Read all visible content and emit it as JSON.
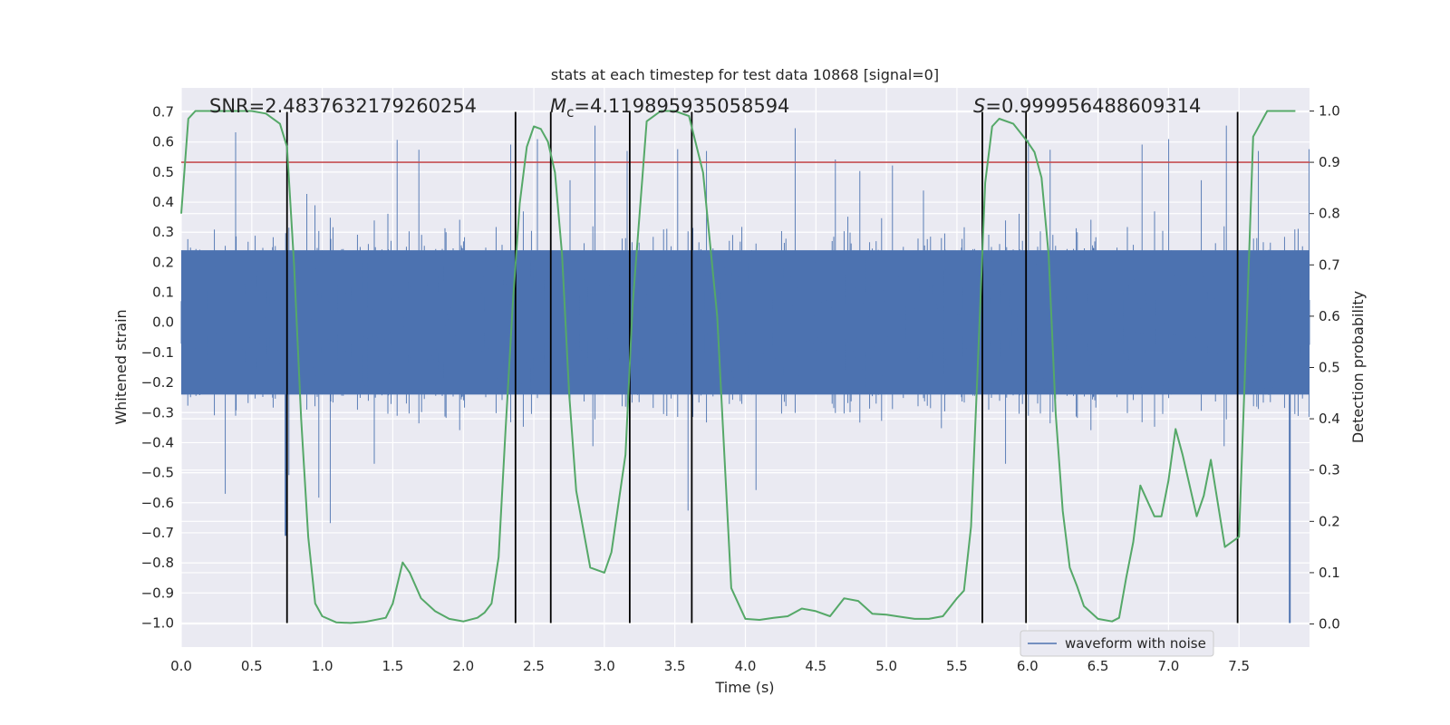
{
  "chart_data": {
    "type": "line",
    "title": "stats at each timestep for test data 10868 [signal=0]",
    "xlabel": "Time (s)",
    "ylabel": "Whitened strain",
    "y2label": "Detection probability",
    "xlim": [
      0.0,
      8.0
    ],
    "ylim": [
      -1.08,
      0.78
    ],
    "y2lim": [
      -0.045,
      1.045
    ],
    "xticks": [
      "0.0",
      "0.5",
      "1.0",
      "1.5",
      "2.0",
      "2.5",
      "3.0",
      "3.5",
      "4.0",
      "4.5",
      "5.0",
      "5.5",
      "6.0",
      "6.5",
      "7.0",
      "7.5"
    ],
    "yticks": [
      "0.7",
      "0.6",
      "0.5",
      "0.4",
      "0.3",
      "0.2",
      "0.1",
      "0.0",
      "−0.1",
      "−0.2",
      "−0.3",
      "−0.4",
      "−0.5",
      "−0.6",
      "−0.7",
      "−0.8",
      "−0.9",
      "−1.0"
    ],
    "y2ticks": [
      "1.0",
      "0.9",
      "0.8",
      "0.7",
      "0.6",
      "0.5",
      "0.4",
      "0.3",
      "0.2",
      "0.1",
      "0.0"
    ],
    "grid": true,
    "legend_position": "lower-right",
    "annotations": [
      {
        "id": "snr",
        "text": "SNR=2.4837632179260254"
      },
      {
        "id": "mc",
        "text": "=4.119895935058594",
        "prefix": "M",
        "sub": "c"
      },
      {
        "id": "s",
        "text": "=0.999956488609314",
        "prefix": "S"
      }
    ],
    "series": [
      {
        "name": "waveform with noise",
        "color": "#4c72b0",
        "axis": "left",
        "kind": "noise",
        "amplitude_typical": 0.3,
        "amplitude_peak": 0.7
      },
      {
        "color": "#55a868",
        "axis": "right",
        "x": [
          0.0,
          0.05,
          0.1,
          0.2,
          0.3,
          0.4,
          0.5,
          0.6,
          0.7,
          0.75,
          0.8,
          0.85,
          0.9,
          0.95,
          1.0,
          1.1,
          1.2,
          1.3,
          1.45,
          1.5,
          1.57,
          1.62,
          1.7,
          1.8,
          1.9,
          2.0,
          2.1,
          2.15,
          2.2,
          2.25,
          2.3,
          2.35,
          2.4,
          2.45,
          2.5,
          2.55,
          2.6,
          2.65,
          2.7,
          2.75,
          2.8,
          2.9,
          3.0,
          3.05,
          3.15,
          3.2,
          3.3,
          3.4,
          3.5,
          3.6,
          3.7,
          3.8,
          3.9,
          4.0,
          4.1,
          4.2,
          4.3,
          4.4,
          4.5,
          4.6,
          4.7,
          4.8,
          4.9,
          5.0,
          5.1,
          5.2,
          5.3,
          5.4,
          5.5,
          5.55,
          5.6,
          5.65,
          5.7,
          5.75,
          5.8,
          5.9,
          6.0,
          6.05,
          6.1,
          6.15,
          6.2,
          6.25,
          6.3,
          6.35,
          6.4,
          6.5,
          6.6,
          6.65,
          6.7,
          6.75,
          6.8,
          6.9,
          6.95,
          7.0,
          7.05,
          7.1,
          7.2,
          7.25,
          7.3,
          7.4,
          7.5,
          7.55,
          7.6,
          7.7,
          7.8,
          7.9
        ],
        "y": [
          0.8,
          0.985,
          1.0,
          1.0,
          1.0,
          1.0,
          1.0,
          0.995,
          0.975,
          0.93,
          0.7,
          0.4,
          0.17,
          0.04,
          0.015,
          0.003,
          0.002,
          0.004,
          0.012,
          0.04,
          0.12,
          0.1,
          0.05,
          0.025,
          0.01,
          0.005,
          0.012,
          0.022,
          0.04,
          0.13,
          0.38,
          0.62,
          0.82,
          0.93,
          0.97,
          0.965,
          0.94,
          0.88,
          0.72,
          0.45,
          0.26,
          0.11,
          0.1,
          0.14,
          0.33,
          0.62,
          0.98,
          1.0,
          1.0,
          0.99,
          0.88,
          0.6,
          0.07,
          0.01,
          0.008,
          0.012,
          0.015,
          0.03,
          0.025,
          0.015,
          0.05,
          0.045,
          0.02,
          0.018,
          0.014,
          0.01,
          0.01,
          0.015,
          0.05,
          0.065,
          0.19,
          0.52,
          0.86,
          0.97,
          0.985,
          0.975,
          0.94,
          0.92,
          0.87,
          0.72,
          0.41,
          0.22,
          0.11,
          0.075,
          0.035,
          0.01,
          0.005,
          0.012,
          0.09,
          0.16,
          0.27,
          0.21,
          0.21,
          0.28,
          0.38,
          0.33,
          0.21,
          0.25,
          0.32,
          0.15,
          0.17,
          0.55,
          0.95,
          1.0,
          1.0,
          1.0
        ]
      }
    ],
    "threshold": {
      "axis": "right",
      "value": 0.9,
      "color": "#c44e52"
    },
    "vlines": [
      0.75,
      2.37,
      2.62,
      3.18,
      3.62,
      5.68,
      5.99,
      7.49
    ]
  }
}
